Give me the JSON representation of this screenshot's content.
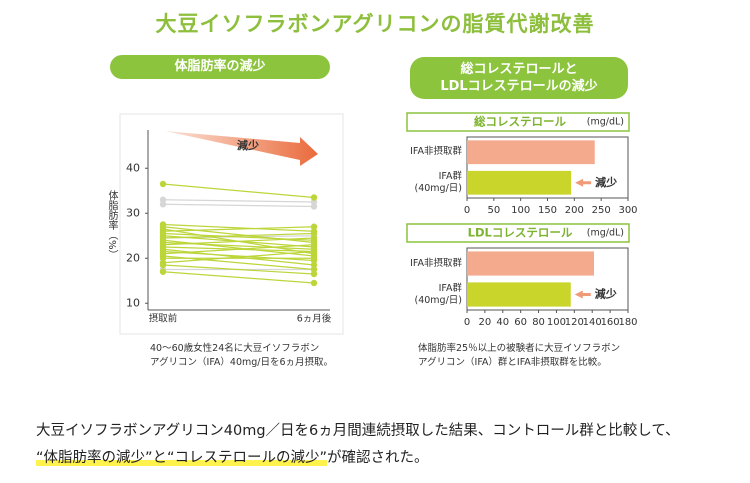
{
  "title": "大豆イソフラボンアグリコンの脂質代謝改善",
  "panels": [
    {
      "header": "体脂肪率の減少",
      "caption": "40～60歳女性24名に大豆イソフラボン\nアグリコン（IFA）40mg/日を6ヵ月摂取。"
    },
    {
      "header": "総コレステロールと\nLDLコレステロールの減少",
      "caption": "体脂肪率25％以上の被験者に大豆イソフラボン\nアグリコン（IFA）群とIFA非摂取群を比較。"
    }
  ],
  "body": {
    "before": "大豆イソフラボンアグリコン40mg／日を6ヵ月間連続摂取した結果、コントロール群と比較して、",
    "highlight": "“体脂肪率の減少”と“コレステロールの減少”",
    "after": "が確認された。"
  },
  "chart_data": [
    {
      "type": "line",
      "y_label": "体脂肪率（%）",
      "annotation": "減少",
      "categories": [
        "摂取前",
        "6ヵ月後"
      ],
      "ylim": [
        8.5,
        48.5
      ],
      "yticks": [
        10,
        20,
        30,
        40
      ],
      "series": [
        {
          "color": "#bcd63a",
          "values": [
            36.5,
            33.5
          ]
        },
        {
          "color": "#bcd63a",
          "values": [
            27.5,
            26
          ]
        },
        {
          "color": "#bcd63a",
          "values": [
            27,
            23.5
          ]
        },
        {
          "color": "#bcd63a",
          "values": [
            26.5,
            21
          ]
        },
        {
          "color": "#bcd63a",
          "values": [
            26,
            27
          ]
        },
        {
          "color": "#bcd63a",
          "values": [
            25.5,
            24
          ]
        },
        {
          "color": "#bcd63a",
          "values": [
            25,
            22.5
          ]
        },
        {
          "color": "#bcd63a",
          "values": [
            24.5,
            25.5
          ]
        },
        {
          "color": "#bcd63a",
          "values": [
            24,
            20.5
          ]
        },
        {
          "color": "#bcd63a",
          "values": [
            23.5,
            22
          ]
        },
        {
          "color": "#bcd63a",
          "values": [
            23,
            24.5
          ]
        },
        {
          "color": "#bcd63a",
          "values": [
            22.5,
            21.5
          ]
        },
        {
          "color": "#bcd63a",
          "values": [
            22,
            18.5
          ]
        },
        {
          "color": "#bcd63a",
          "values": [
            21.5,
            19.5
          ]
        },
        {
          "color": "#bcd63a",
          "values": [
            21,
            23
          ]
        },
        {
          "color": "#bcd63a",
          "values": [
            20.5,
            17.5
          ]
        },
        {
          "color": "#bcd63a",
          "values": [
            20,
            20
          ]
        },
        {
          "color": "#bcd63a",
          "values": [
            19,
            21.5
          ]
        },
        {
          "color": "#bcd63a",
          "values": [
            18.5,
            16.5
          ]
        },
        {
          "color": "#bcd63a",
          "values": [
            17,
            14.5
          ]
        },
        {
          "color": "#d6d6d6",
          "values": [
            33,
            32.5
          ]
        },
        {
          "color": "#d6d6d6",
          "values": [
            32,
            31.5
          ]
        },
        {
          "color": "#d6d6d6",
          "values": [
            24.5,
            25
          ]
        },
        {
          "color": "#d6d6d6",
          "values": [
            17.5,
            17.5
          ]
        }
      ]
    },
    {
      "type": "hbar",
      "title": "総コレステロール",
      "unit": "(mg/dL)",
      "annotation": "減少",
      "categories": [
        "IFA非摂取群",
        "IFA群\n(40mg/日)"
      ],
      "values": [
        238,
        194
      ],
      "colors": [
        "#f4aa8c",
        "#c9d52a"
      ],
      "xlim": [
        0,
        300
      ],
      "xticks": [
        0,
        50,
        100,
        150,
        200,
        250,
        300
      ]
    },
    {
      "type": "hbar",
      "title": "LDLコレステロール",
      "unit": "(mg/dL)",
      "annotation": "減少",
      "categories": [
        "IFA非摂取群",
        "IFA群\n(40mg/日)"
      ],
      "values": [
        142,
        116
      ],
      "colors": [
        "#f4aa8c",
        "#c9d52a"
      ],
      "xlim": [
        0,
        180
      ],
      "xticks": [
        0,
        20,
        40,
        60,
        80,
        100,
        120,
        140,
        160,
        180
      ]
    }
  ]
}
